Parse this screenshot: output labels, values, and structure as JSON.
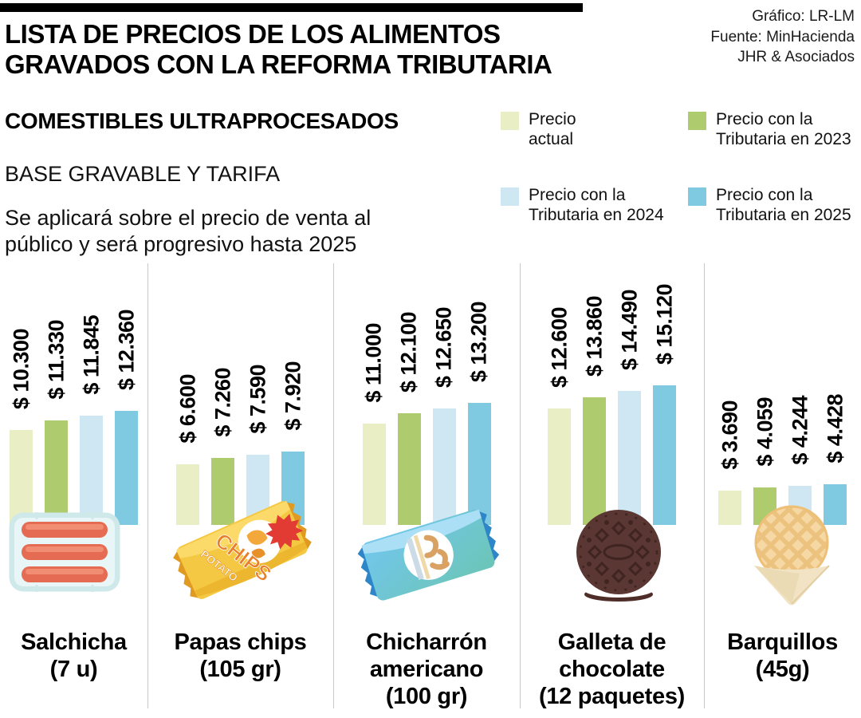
{
  "header": {
    "title_line1": "LISTA DE PRECIOS DE LOS ALIMENTOS",
    "title_line2": "GRAVADOS CON LA REFORMA TRIBUTARIA",
    "credits": [
      "Gráfico: LR-LM",
      "Fuente: MinHacienda",
      "JHR & Asociados"
    ]
  },
  "intro": {
    "subtitle": "COMESTIBLES ULTRAPROCESADOS",
    "subheading": "BASE GRAVABLE Y TARIFA",
    "description": "Se aplicará sobre el precio de venta al público y será progresivo hasta 2025"
  },
  "legend": {
    "items": [
      {
        "label": "Precio actual",
        "lines": [
          "Precio",
          "actual"
        ],
        "color": "#e9eec5"
      },
      {
        "label": "Precio con la Tributaria en 2023",
        "lines": [
          "Precio con la",
          "Tributaria en 2023"
        ],
        "color": "#aecb6d"
      },
      {
        "label": "Precio con la Tributaria en 2024",
        "lines": [
          "Precio con la",
          "Tributaria en 2024"
        ],
        "color": "#cfe7f2"
      },
      {
        "label": "Precio con la Tributaria en 2025",
        "lines": [
          "Precio con la",
          "Tributaria en 2025"
        ],
        "color": "#7fc9e1"
      }
    ]
  },
  "chart_data": {
    "type": "bar",
    "unit": "pesos colombianos ($)",
    "series": [
      "Precio actual",
      "Precio con la Tributaria en 2023",
      "Precio con la Tributaria en 2024",
      "Precio con la Tributaria en 2025"
    ],
    "series_colors": [
      "#e9eec5",
      "#aecb6d",
      "#cfe7f2",
      "#7fc9e1"
    ],
    "ylim": [
      0,
      15500
    ],
    "grid": false,
    "legend_position": "top-right",
    "groups": [
      {
        "name": "Salchicha",
        "name_lines": [
          "Salchicha",
          "(7 u)"
        ],
        "icon": "sausages-tray",
        "values": [
          10300,
          11330,
          11845,
          12360
        ],
        "value_labels": [
          "$ 10.300",
          "$ 11.330",
          "$ 11.845",
          "$ 12.360"
        ]
      },
      {
        "name": "Papas chips",
        "name_lines": [
          "Papas chips",
          "(105 gr)"
        ],
        "icon": "chips-bag",
        "values": [
          6600,
          7260,
          7590,
          7920
        ],
        "value_labels": [
          "$ 6.600",
          "$ 7.260",
          "$ 7.590",
          "$ 7.920"
        ]
      },
      {
        "name": "Chicharrón americano",
        "name_lines": [
          "Chicharrón",
          "americano",
          "(100 gr)"
        ],
        "icon": "blue-snack-bag",
        "values": [
          11000,
          12100,
          12650,
          13200
        ],
        "value_labels": [
          "$ 11.000",
          "$ 12.100",
          "$ 12.650",
          "$ 13.200"
        ]
      },
      {
        "name": "Galleta de chocolate",
        "name_lines": [
          "Galleta de",
          "chocolate",
          "(12 paquetes)"
        ],
        "icon": "chocolate-cookie",
        "values": [
          12600,
          13860,
          14490,
          15120
        ],
        "value_labels": [
          "$ 12.600",
          "$ 13.860",
          "$ 14.490",
          "$ 15.120"
        ]
      },
      {
        "name": "Barquillos",
        "name_lines": [
          "Barquillos",
          "(45g)"
        ],
        "icon": "waffle-cone",
        "values": [
          3690,
          4059,
          4244,
          4428
        ],
        "value_labels": [
          "$ 3.690",
          "$ 4.059",
          "$ 4.244",
          "$ 4.428"
        ]
      }
    ]
  }
}
